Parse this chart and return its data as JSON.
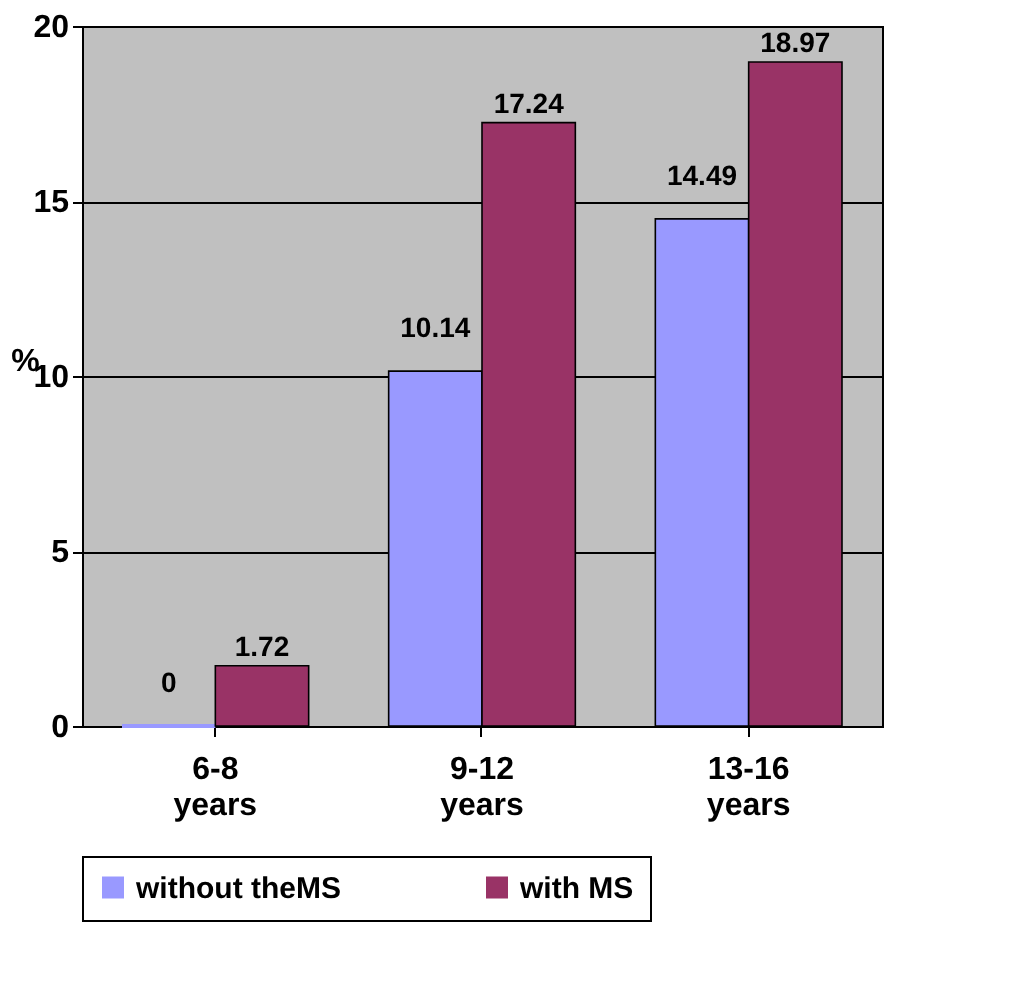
{
  "chart_data": {
    "type": "bar",
    "categories": [
      "6-8 years",
      "9-12 years",
      "13-16 years"
    ],
    "ylabel": "%",
    "series": [
      {
        "name": "without theMS",
        "color": "#9999ff",
        "values": [
          0,
          10.14,
          14.49
        ]
      },
      {
        "name": "with MS",
        "color": "#993366",
        "values": [
          1.72,
          17.24,
          18.97
        ]
      }
    ],
    "ylim": [
      0,
      20
    ],
    "yticks": [
      0,
      5,
      10,
      15,
      20
    ],
    "grid": "y",
    "legend": "bottom",
    "data_labels": true
  }
}
